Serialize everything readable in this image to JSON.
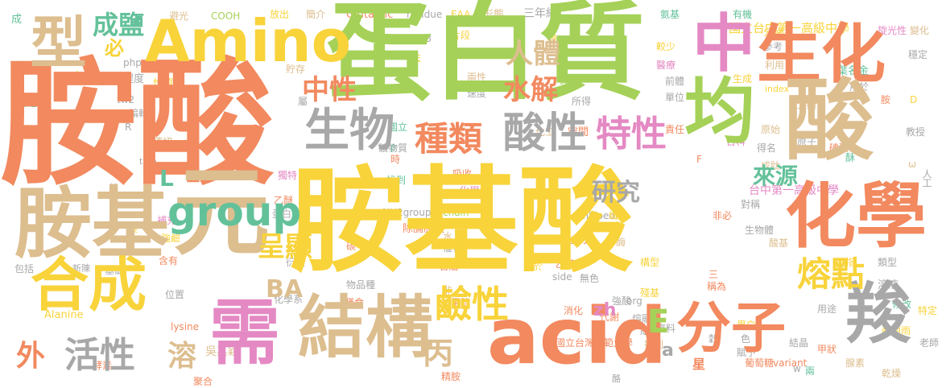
{
  "colors": {
    "orange": "#F2895F",
    "green": "#A5D158",
    "yellow": "#F8D33A",
    "tan": "#DDBE8F",
    "gray": "#A8A8A8",
    "pink": "#E489C3",
    "teal": "#63C19A",
    "red": "#EE6A5E"
  },
  "words": [
    "胺酸",
    "蛋白質",
    "胺基酸",
    "Amino",
    "型",
    "元",
    "胺基",
    "合成",
    "中",
    "生化",
    "均",
    "酸",
    "化學",
    "需",
    "結構",
    "acid",
    "分子",
    "羧",
    "生物",
    "酸性",
    "種類",
    "特性",
    "group",
    "中性",
    "水解",
    "人體",
    "成鹽",
    "呈顯",
    "鹼性",
    "熔點",
    "來源",
    "研究",
    "活性",
    "外",
    "溶",
    "丙",
    "BA",
    "E",
    "L",
    "必",
    "zh",
    "a"
  ],
  "small": [
    "成",
    "避光",
    "COOH",
    "放出",
    "簡介",
    "Glutamic",
    "residue",
    "EAA",
    "形態",
    "氨基",
    "有機",
    "國立台中第一高級中學",
    "分解",
    "變化",
    "php",
    "約",
    "B8",
    "片段",
    "難",
    "三年級",
    "較少",
    "醫療",
    "旋光性",
    "參考",
    "穩定",
    "白",
    "程度",
    "貯存",
    "苯",
    "兩性",
    "理化",
    "前體",
    "生成",
    "葉名金",
    "利用",
    "製造",
    "性質",
    "tw2",
    "屬",
    "速度",
    "index",
    "編輯",
    "所得",
    "用於",
    "單位",
    "胺",
    "D",
    "R",
    "http",
    "確切",
    "國立",
    "化工",
    "空間",
    "責任",
    "原始",
    "百科",
    "二碘",
    "原子",
    "教授",
    "title",
    "β",
    "時",
    "獨特",
    "吸收",
    "F",
    "得名",
    "成肽",
    "ω",
    "基",
    "補充",
    "找到",
    "化學科",
    "乙醚",
    "台中第一高級中學",
    "蛋白",
    "對稱",
    "非必",
    "人工",
    "溴",
    "強鹼",
    "NH2group",
    "chain",
    "wikipedia",
    "纖維",
    "包括",
    "新陳",
    "基礎",
    "含有",
    "除脯胺酸",
    "碳",
    "水",
    "催化",
    "生物體",
    "衍生",
    "化學式",
    "酶",
    "構型",
    "酸基",
    "指",
    "位置",
    "化學系",
    "石油",
    "溶於",
    "乙醇",
    "溶液",
    "物品種",
    "Alanine",
    "非",
    "三",
    "類型",
    "膳食",
    "甲硫",
    "side",
    "無色",
    "殘基",
    "稱為",
    "用途",
    "修改",
    "lysine",
    "消化",
    "強酸",
    "org",
    "代謝",
    "熔融",
    "組",
    "穀",
    "色",
    "異白",
    "賦予",
    "特定",
    "聚合",
    "精胺",
    "酪",
    "葡萄糖",
    "variant",
    "結晶",
    "甲狀",
    "腺素",
    "老師",
    "乾燥",
    "國立台灣師範大學",
    "排列",
    "資料",
    "星",
    "吳其穎",
    "薛朋雨",
    "w",
    "碘酸",
    "酥",
    "礦物質",
    "酵素",
    "兩",
    "外",
    "人"
  ]
}
